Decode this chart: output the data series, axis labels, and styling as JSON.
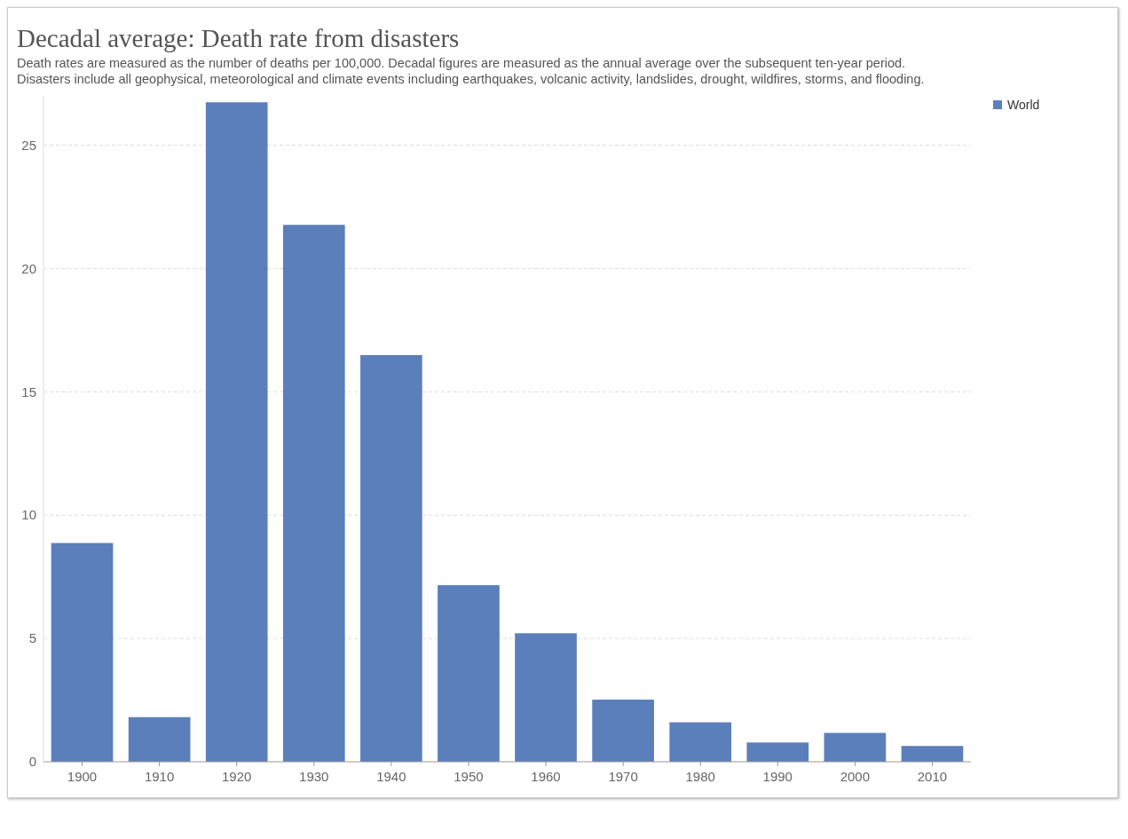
{
  "chart_data": {
    "type": "bar",
    "title": "Decadal average: Death rate from disasters",
    "subtitle": "Death rates are measured as the number of deaths per 100,000. Decadal figures are measured as the annual average over the subsequent ten-year period. Disasters include all geophysical, meteorological and climate events including earthquakes, volcanic activity, landslides, drought, wildfires, storms, and flooding.",
    "categories": [
      "1900",
      "1910",
      "1920",
      "1930",
      "1940",
      "1950",
      "1960",
      "1970",
      "1980",
      "1990",
      "2000",
      "2010"
    ],
    "series": [
      {
        "name": "World",
        "color": "#5b7fba",
        "values": [
          8.87,
          1.81,
          26.74,
          21.77,
          16.49,
          7.16,
          5.21,
          2.52,
          1.6,
          0.78,
          1.17,
          0.64
        ]
      }
    ],
    "ylim": [
      0,
      27
    ],
    "yticks": [
      0,
      5,
      10,
      15,
      20,
      25
    ],
    "grid": "y",
    "legend": "top right"
  }
}
